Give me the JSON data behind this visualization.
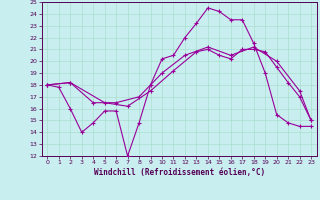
{
  "xlabel": "Windchill (Refroidissement éolien,°C)",
  "xlim": [
    -0.5,
    23.5
  ],
  "ylim": [
    12,
    25
  ],
  "xticks": [
    0,
    1,
    2,
    3,
    4,
    5,
    6,
    7,
    8,
    9,
    10,
    11,
    12,
    13,
    14,
    15,
    16,
    17,
    18,
    19,
    20,
    21,
    22,
    23
  ],
  "yticks": [
    12,
    13,
    14,
    15,
    16,
    17,
    18,
    19,
    20,
    21,
    22,
    23,
    24,
    25
  ],
  "bg_color": "#c8eef0",
  "grid_color": "#aaddcc",
  "line_color": "#990099",
  "line1_x": [
    0,
    1,
    2,
    3,
    4,
    5,
    6,
    7,
    8,
    9,
    10,
    11,
    12,
    13,
    14,
    15,
    16,
    17,
    18,
    19,
    20,
    21,
    22,
    23
  ],
  "line1_y": [
    18.0,
    17.8,
    16.0,
    14.0,
    14.8,
    15.8,
    15.8,
    12.0,
    14.8,
    18.0,
    20.2,
    20.5,
    22.0,
    23.2,
    24.5,
    24.2,
    23.5,
    23.5,
    21.5,
    19.0,
    15.5,
    14.8,
    14.5,
    14.5
  ],
  "line2_x": [
    0,
    2,
    5,
    7,
    9,
    11,
    13,
    14,
    15,
    16,
    17,
    18,
    19,
    20,
    21,
    22,
    23
  ],
  "line2_y": [
    18.0,
    18.2,
    16.5,
    16.2,
    17.5,
    19.2,
    20.8,
    21.0,
    20.5,
    20.2,
    21.0,
    21.0,
    20.8,
    19.5,
    18.2,
    17.0,
    15.0
  ],
  "line3_x": [
    0,
    2,
    4,
    6,
    8,
    10,
    12,
    14,
    16,
    18,
    20,
    22,
    23
  ],
  "line3_y": [
    18.0,
    18.2,
    16.5,
    16.5,
    17.0,
    19.0,
    20.5,
    21.2,
    20.5,
    21.2,
    20.0,
    17.5,
    15.0
  ],
  "tick_color": "#550055",
  "spine_color": "#550055",
  "xlabel_fontsize": 5.5,
  "tick_fontsize": 4.5
}
